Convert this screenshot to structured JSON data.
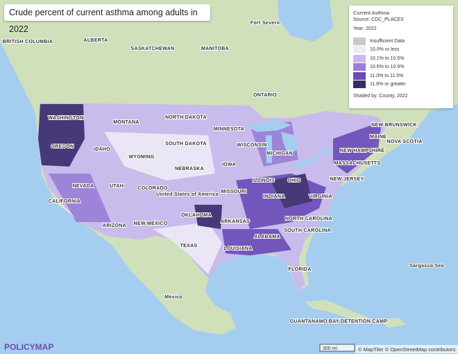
{
  "title": "Crude percent of current asthma among adults in 2022",
  "legend": {
    "title": "Current Asthma",
    "source": "Source: CDC_PLACES",
    "year": "Year: 2022",
    "items": [
      {
        "label": "Insufficient Data",
        "color": "#c9c9c9"
      },
      {
        "label": "10.0% or less",
        "color": "#eeebf8"
      },
      {
        "label": "10.1% to 10.5%",
        "color": "#c9bbec"
      },
      {
        "label": "10.6% to 10.9%",
        "color": "#9a7fd8"
      },
      {
        "label": "11.0% to 11.5%",
        "color": "#6a4cb6"
      },
      {
        "label": "11.6% or greater",
        "color": "#3a2a6c"
      }
    ],
    "footer": "Shaded by: County, 2022"
  },
  "map_labels": [
    "BRITISH COLUMBIA",
    "ALBERTA",
    "SASKATCHEWAN",
    "MANITOBA",
    "Fort Severn",
    "ONTARIO",
    "NEW BRUNSWICK",
    "NOVA SCOTIA",
    "WASHINGTON",
    "MONTANA",
    "NORTH DAKOTA",
    "MINNESOTA",
    "OREGON",
    "IDAHO",
    "SOUTH DAKOTA",
    "WISCONSIN",
    "MICHIGAN",
    "MAINE",
    "NEW HAMPSHIRE",
    "MASSACHUSETTS",
    "WYOMING",
    "NEBRASKA",
    "IOWA",
    "ILLINOIS",
    "NEW JERSEY",
    "NEVADA",
    "UTAH",
    "COLORADO",
    "United States of America",
    "MISSOURI",
    "INDIANA",
    "OHIO",
    "VIRGINIA",
    "CALIFORNIA",
    "OKLAHOMA",
    "ARKANSAS",
    "NORTH CAROLINA",
    "ARIZONA",
    "NEW MEXICO",
    "SOUTH CAROLINA",
    "TEXAS",
    "LOUISIANA",
    "ALABAMA",
    "FLORIDA",
    "Sargasso Sea",
    "México",
    "GUANTANAMO BAY DETENTION CAMP"
  ],
  "scale": "300 mi",
  "attribution": "© MapTiler © OpenStreetMap contributors",
  "logo": "POLICYMAP"
}
